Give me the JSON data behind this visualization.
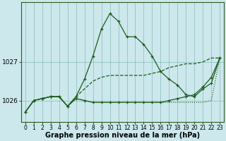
{
  "xlabel": "Graphe pression niveau de la mer (hPa)",
  "hours": [
    0,
    1,
    2,
    3,
    4,
    5,
    6,
    7,
    8,
    9,
    10,
    11,
    12,
    13,
    14,
    15,
    16,
    17,
    18,
    19,
    20,
    21,
    22,
    23
  ],
  "series": [
    [
      1025.7,
      1026.0,
      1026.05,
      1026.1,
      1026.1,
      1025.85,
      1026.1,
      1026.55,
      1027.15,
      1027.85,
      1028.25,
      1028.05,
      1027.65,
      1027.65,
      1027.45,
      1027.15,
      1026.75,
      1026.55,
      1026.4,
      1026.15,
      1026.1,
      1026.3,
      1026.45,
      1027.1
    ],
    [
      1025.7,
      1026.0,
      1026.05,
      1026.1,
      1026.1,
      1025.85,
      1026.1,
      1026.3,
      1026.5,
      1026.6,
      1026.65,
      1026.65,
      1026.65,
      1026.65,
      1026.65,
      1026.7,
      1026.75,
      1026.85,
      1026.9,
      1026.95,
      1026.95,
      1027.0,
      1027.1,
      1027.1
    ],
    [
      1025.7,
      1026.0,
      1026.05,
      1026.1,
      1026.1,
      1025.85,
      1026.05,
      1026.0,
      1025.95,
      1025.95,
      1025.95,
      1025.95,
      1025.95,
      1025.95,
      1025.95,
      1025.95,
      1025.95,
      1026.0,
      1026.05,
      1026.1,
      1026.15,
      1026.35,
      1026.6,
      1027.1
    ],
    [
      1025.7,
      1026.0,
      1026.05,
      1026.1,
      1026.1,
      1025.85,
      1026.05,
      1026.0,
      1025.95,
      1025.95,
      1025.95,
      1025.95,
      1025.95,
      1025.95,
      1025.95,
      1025.95,
      1025.95,
      1025.95,
      1025.95,
      1025.95,
      1025.95,
      1025.95,
      1026.0,
      1027.1
    ]
  ],
  "line_color": "#1a5c1a",
  "dot_color": "#1a5c1a",
  "bg_color": "#cce8ec",
  "grid_color": "#88bbbb",
  "ylim": [
    1025.45,
    1028.55
  ],
  "yticks": [
    1026,
    1027
  ],
  "xtick_fontsize": 5.5,
  "ytick_fontsize": 6.5,
  "xlabel_fontsize": 7.0
}
